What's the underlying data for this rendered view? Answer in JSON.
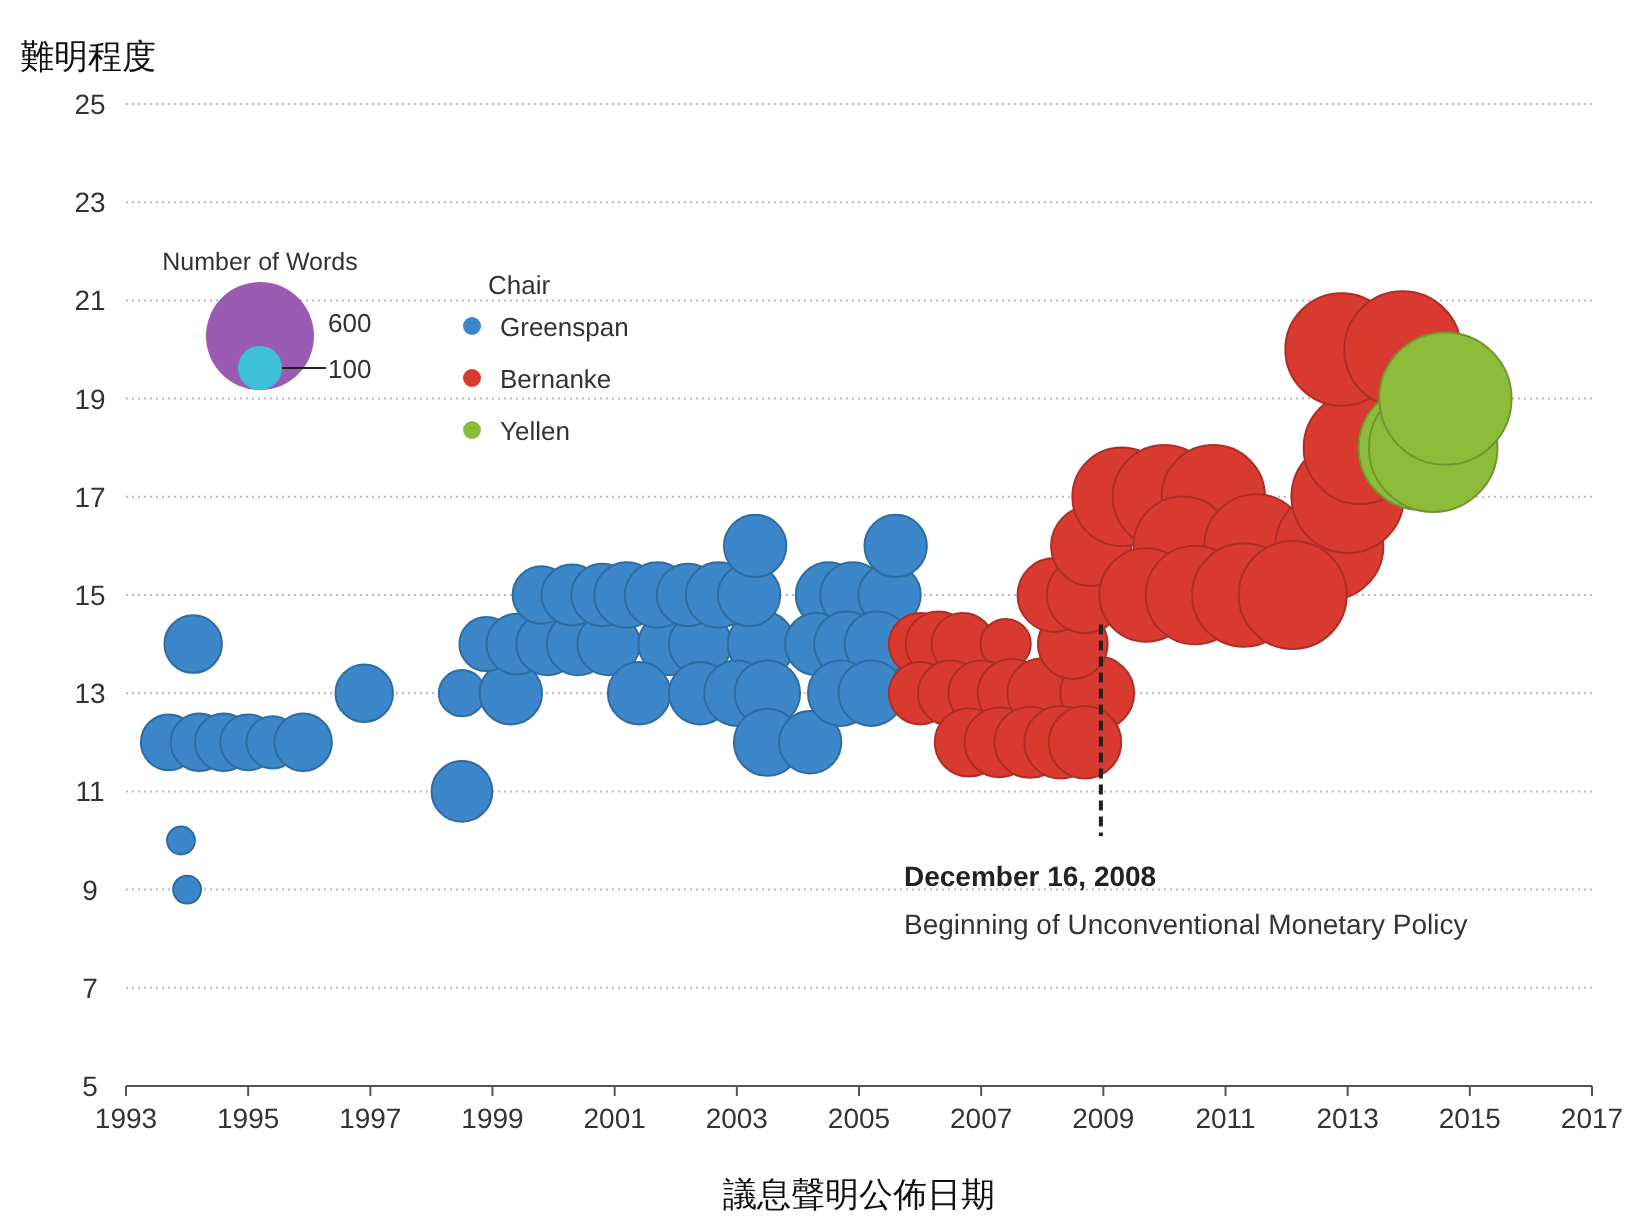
{
  "chart_data": {
    "type": "bubble",
    "xlabel": "議息聲明公佈日期",
    "ylabel": "難明程度",
    "legend_title": "Chair",
    "legend": "top left",
    "grid": "y",
    "xlim": [
      1993,
      2017
    ],
    "xticks": [
      1993,
      1995,
      1997,
      1999,
      2001,
      2003,
      2005,
      2007,
      2009,
      2011,
      2013,
      2015,
      2017
    ],
    "ylim": [
      5,
      25
    ],
    "yticks": [
      5,
      7,
      9,
      11,
      13,
      15,
      17,
      19,
      21,
      23,
      25
    ],
    "size_legend": [
      600,
      100
    ],
    "annotations": [
      {
        "text": "December 16, 2008",
        "x": 2008.96,
        "y": 14.4
      },
      "Beginning of Unconventional Monetary Policy",
      "Number of Words"
    ],
    "series": [
      {
        "name": "Greenspan",
        "color": "#3b87c9",
        "x": [
          1993.7,
          1994.2,
          1994.6,
          1995.0,
          1995.4,
          1995.9,
          1994.1,
          1993.9,
          1994.0,
          1996.9,
          1998.5,
          1998.5,
          1999.3,
          1998.9,
          1999.4,
          1999.9,
          2000.4,
          2000.9,
          2001.9,
          2002.4,
          2003.4,
          1999.8,
          2000.3,
          2000.8,
          2001.2,
          2001.7,
          2002.2,
          2002.7,
          2003.2,
          2001.4,
          2002.4,
          2003.0,
          2003.5,
          2003.3,
          2003.5,
          2004.2,
          2004.5,
          2004.9,
          2005.5,
          2004.3,
          2004.8,
          2005.3,
          2004.7,
          2005.2,
          2005.6
        ],
        "values": [
          12,
          12,
          12,
          12,
          12,
          12,
          14,
          10,
          9,
          13,
          13,
          11,
          13,
          14,
          14,
          14,
          14,
          14,
          14,
          14,
          14,
          15,
          15,
          15,
          15,
          15,
          15,
          15,
          15,
          13,
          13,
          13,
          13,
          16,
          12,
          12,
          15,
          15,
          15,
          14,
          14,
          14,
          13,
          13,
          16
        ],
        "sizes": [
          160,
          170,
          170,
          160,
          140,
          170,
          170,
          40,
          40,
          170,
          110,
          190,
          200,
          150,
          190,
          200,
          200,
          200,
          200,
          200,
          230,
          170,
          190,
          200,
          220,
          220,
          200,
          220,
          200,
          200,
          200,
          220,
          220,
          200,
          230,
          200,
          220,
          220,
          200,
          200,
          220,
          220,
          220,
          220,
          200
        ]
      },
      {
        "name": "Bernanke",
        "color": "#d93a30",
        "x": [
          2006.0,
          2006.3,
          2006.7,
          2007.4,
          2006.0,
          2006.5,
          2007.0,
          2007.5,
          2008.0,
          2008.9,
          2006.8,
          2007.3,
          2007.8,
          2008.3,
          2008.7,
          2008.5,
          2008.2,
          2008.7,
          2008.8,
          2009.3,
          2010.0,
          2010.8,
          2010.3,
          2011.5,
          2012.7,
          2009.7,
          2010.5,
          2011.3,
          2012.1,
          2013.0,
          2013.2,
          2012.9,
          2013.9
        ],
        "values": [
          14,
          14,
          14,
          14,
          13,
          13,
          13,
          13,
          13,
          13,
          12,
          12,
          12,
          12,
          12,
          14,
          15,
          15,
          16,
          17,
          17,
          17,
          16,
          16,
          16,
          15,
          15,
          15,
          15,
          17,
          18,
          20,
          20
        ],
        "sizes": [
          200,
          220,
          200,
          130,
          200,
          220,
          220,
          240,
          250,
          280,
          240,
          250,
          260,
          270,
          270,
          250,
          280,
          300,
          330,
          500,
          550,
          550,
          500,
          550,
          600,
          450,
          500,
          550,
          600,
          650,
          650,
          650,
          700
        ]
      },
      {
        "name": "Yellen",
        "color": "#8dbc3b",
        "x": [
          2014.2,
          2014.4,
          2014.6
        ],
        "values": [
          18,
          18,
          19
        ],
        "sizes": [
          800,
          850,
          900
        ]
      }
    ]
  }
}
